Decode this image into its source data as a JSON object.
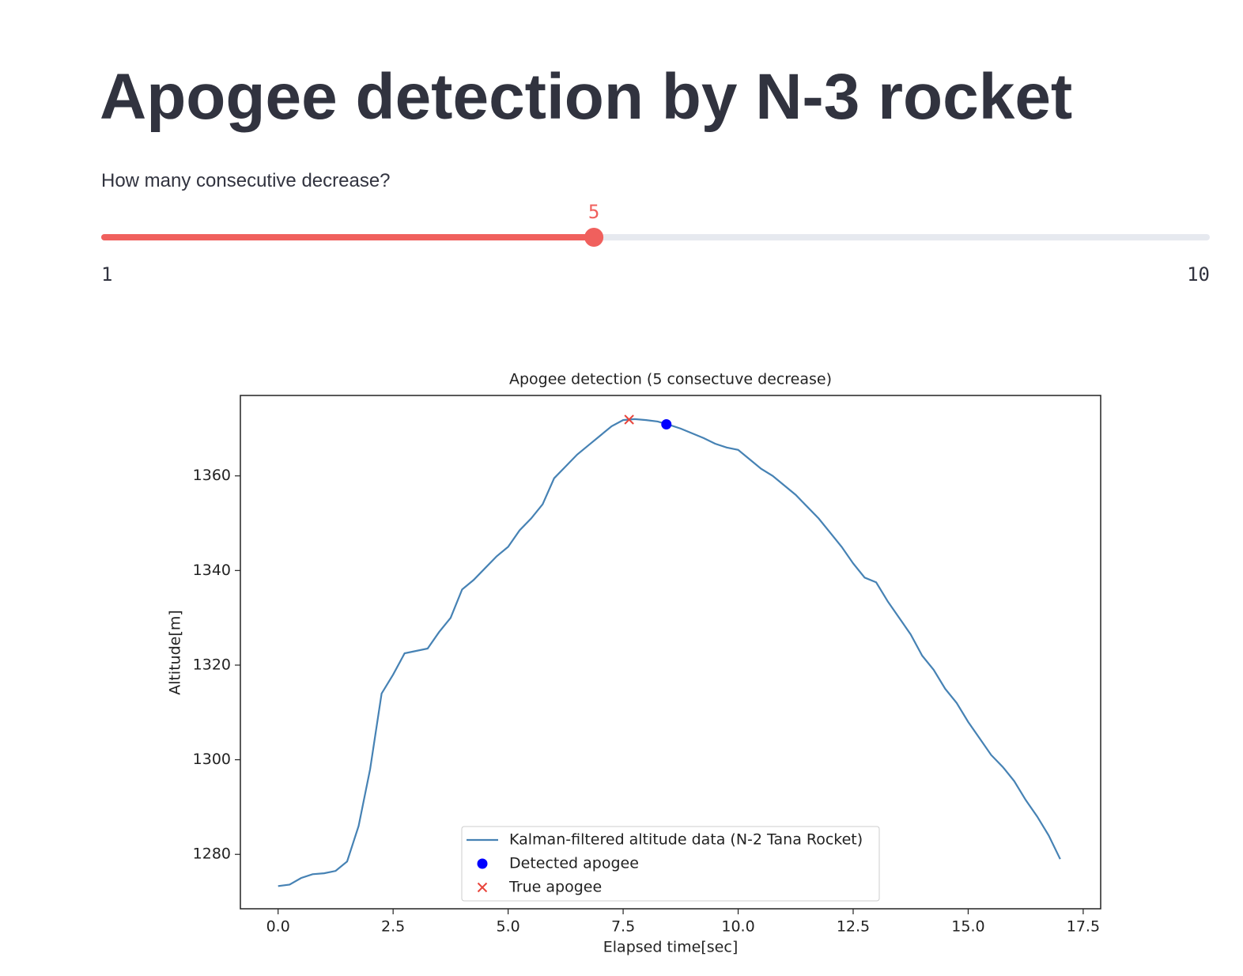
{
  "page": {
    "title": "Apogee detection by N-3 rocket",
    "slider": {
      "label": "How many consecutive decrease?",
      "value": 5,
      "min": 1,
      "max": 10
    }
  },
  "chart_data": {
    "type": "line",
    "title": "Apogee detection (5 consectuve decrease)",
    "x_label": "Elapsed time[sec]",
    "y_label": "Altitude[m]",
    "xlim": [
      -0.82,
      17.88
    ],
    "ylim": [
      1268.5,
      1377
    ],
    "xticks": [
      {
        "value": 0,
        "label": "0.0"
      },
      2.5,
      {
        "value": 5,
        "label": "5.0"
      },
      7.5,
      {
        "value": 10,
        "label": "10.0"
      },
      12.5,
      {
        "value": 15,
        "label": "15.0"
      },
      17.5
    ],
    "yticks": [
      1280,
      1300,
      1320,
      1340,
      1360
    ],
    "grid": false,
    "legend": "lower center",
    "series": [
      {
        "name": "Kalman-filtered altitude data (N-2 Tana Rocket)",
        "type": "line",
        "color": "#4682b4",
        "x": [
          0,
          0.25,
          0.5,
          0.75,
          1,
          1.25,
          1.5,
          1.75,
          2,
          2.25,
          2.5,
          2.75,
          3,
          3.25,
          3.5,
          3.75,
          4,
          4.25,
          4.5,
          4.75,
          5,
          5.25,
          5.5,
          5.75,
          6,
          6.25,
          6.5,
          6.75,
          7,
          7.25,
          7.5,
          7.75,
          8,
          8.25,
          8.5,
          8.75,
          9,
          9.25,
          9.5,
          9.75,
          10,
          10.25,
          10.5,
          10.75,
          11,
          11.25,
          11.5,
          11.75,
          12,
          12.25,
          12.5,
          12.75,
          13,
          13.25,
          13.5,
          13.75,
          14,
          14.25,
          14.5,
          14.75,
          15,
          15.25,
          15.5,
          15.75,
          16,
          16.25,
          16.5,
          16.75,
          17
        ],
        "values": [
          1273.3,
          1273.6,
          1275,
          1275.8,
          1276,
          1276.5,
          1278.5,
          1286,
          1298,
          1314,
          1318,
          1322.5,
          1323,
          1323.5,
          1327,
          1330,
          1336,
          1338,
          1340.5,
          1343,
          1345,
          1348.5,
          1351,
          1354,
          1359.5,
          1362,
          1364.5,
          1366.5,
          1368.5,
          1370.5,
          1371.8,
          1372,
          1371.8,
          1371.5,
          1370.8,
          1370,
          1369,
          1368,
          1366.8,
          1366,
          1365.5,
          1363.5,
          1361.5,
          1360,
          1358,
          1356,
          1353.5,
          1351,
          1348,
          1345,
          1341.5,
          1338.5,
          1337.5,
          1333.5,
          1330,
          1326.5,
          1322,
          1319,
          1315,
          1312,
          1308,
          1304.5,
          1301,
          1298.5,
          1295.5,
          1291.5,
          1288,
          1284,
          1279
        ]
      },
      {
        "name": "Detected apogee",
        "type": "scatter",
        "marker": "o",
        "color": "#0000ff",
        "x": [
          8.44
        ],
        "values": [
          1370.9
        ]
      },
      {
        "name": "True apogee",
        "type": "scatter",
        "marker": "x",
        "color": "#e8453c",
        "x": [
          7.63
        ],
        "values": [
          1371.9
        ]
      }
    ]
  }
}
